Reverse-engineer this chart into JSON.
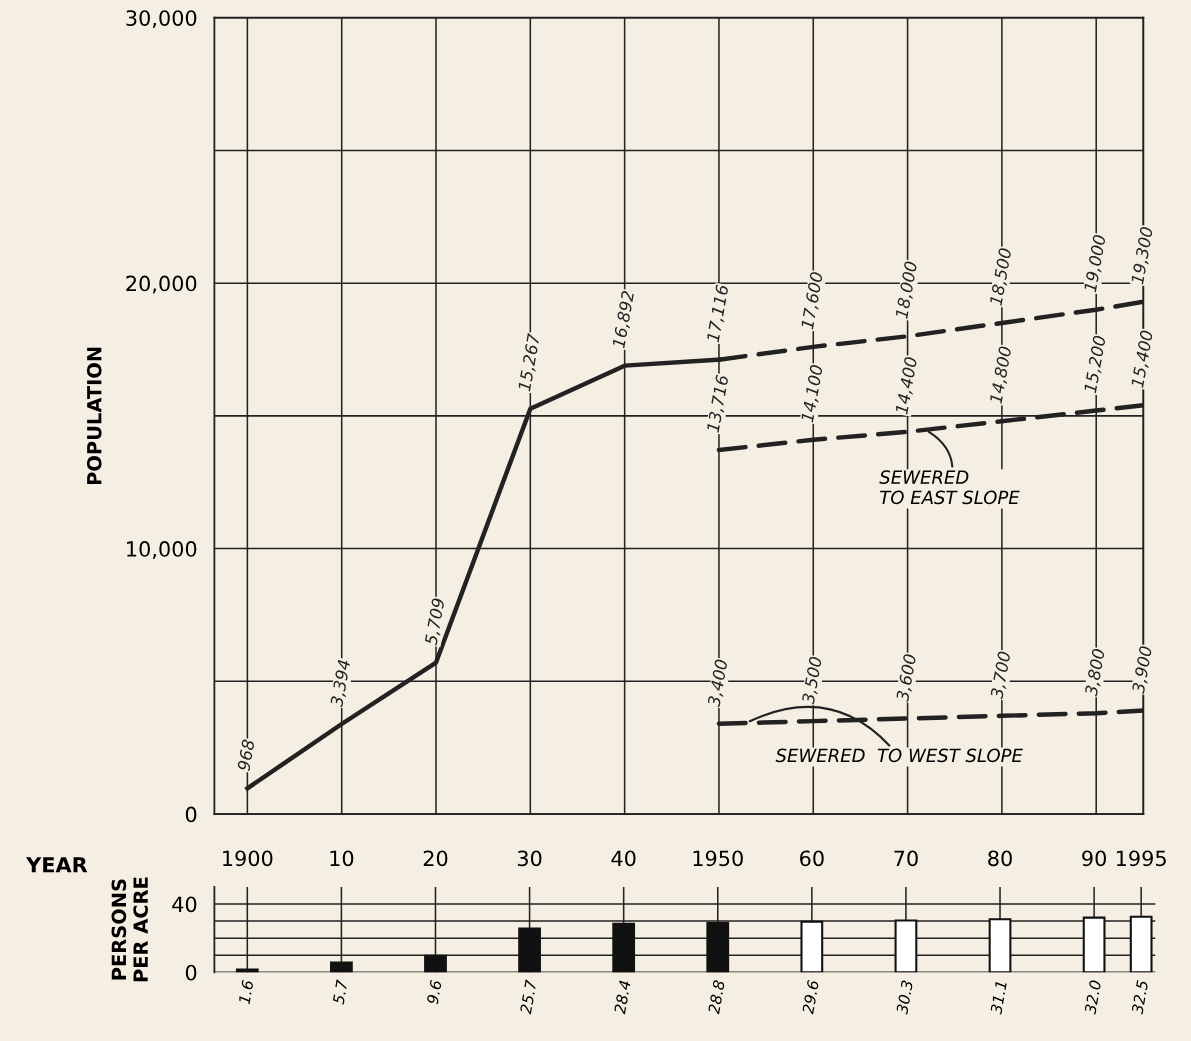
{
  "chart_data": [
    {
      "type": "line",
      "ylabel": "POPULATION",
      "xlim": [
        1896.5,
        1995
      ],
      "xticks": [
        1900,
        1910,
        1920,
        1930,
        1940,
        1950,
        1960,
        1970,
        1980,
        1990,
        1995
      ],
      "tick_labels": "y",
      "ylim": [
        0,
        30000
      ],
      "yticks": [
        0,
        {
          "value": 5000,
          "label": null
        },
        {
          "value": 10000,
          "label": "10,000"
        },
        {
          "value": 15000,
          "label": null
        },
        {
          "value": 20000,
          "label": "20,000"
        },
        {
          "value": 25000,
          "label": null
        },
        {
          "value": 30000,
          "label": "30,000"
        }
      ],
      "grid": true,
      "legend": false,
      "series": [
        {
          "color": "#222222",
          "line_style": "solid",
          "x": [
            1900,
            1910,
            1920,
            1930,
            1940,
            1950
          ],
          "values": [
            968,
            3394,
            5709,
            15267,
            16892,
            17116
          ],
          "value_labels": [
            "968",
            "3,394",
            "5,709",
            "15,267",
            "16,892",
            "17,116"
          ]
        },
        {
          "color": "#222222",
          "line_style": "dashed",
          "x": [
            1950,
            1960,
            1970,
            1980,
            1990,
            1995
          ],
          "values": [
            17116,
            17600,
            18000,
            18500,
            19000,
            19300
          ],
          "value_labels": [
            null,
            "17,600",
            "18,000",
            "18,500",
            "19,000",
            "19,300"
          ]
        },
        {
          "color": "#222222",
          "line_style": "dashed",
          "x": [
            1950,
            1960,
            1970,
            1980,
            1990,
            1995
          ],
          "values": [
            13716,
            14100,
            14400,
            14800,
            15200,
            15400
          ],
          "value_labels": [
            "13,716",
            "14,100",
            "14,400",
            "14,800",
            "15,200",
            "15,400"
          ]
        },
        {
          "color": "#222222",
          "line_style": "dashed",
          "x": [
            1950,
            1960,
            1970,
            1980,
            1990,
            1995
          ],
          "values": [
            3400,
            3500,
            3600,
            3700,
            3800,
            3900
          ],
          "value_labels": [
            "3,400",
            "3,500",
            "3,600",
            "3,700",
            "3,800",
            "3,900"
          ]
        }
      ],
      "annotations": [
        {
          "text": "SEWERED\nTO EAST SLOPE",
          "x": 1972,
          "y": 14450
        },
        {
          "text": "SEWERED  TO WEST SLOPE",
          "x": 1953,
          "y": 3450
        }
      ]
    },
    {
      "type": "bar",
      "ylabel": "PERSONS\nPER ACRE",
      "xlabel": "YEAR",
      "x": [
        1900,
        1910,
        1920,
        1930,
        1940,
        1950,
        1960,
        1970,
        1980,
        1990,
        1995
      ],
      "xlim": [
        1896.5,
        1996.5
      ],
      "xticks": [
        {
          "value": 1900,
          "label": "1900"
        },
        {
          "value": 1910,
          "label": "10"
        },
        {
          "value": 1920,
          "label": "20"
        },
        {
          "value": 1930,
          "label": "30"
        },
        {
          "value": 1940,
          "label": "40"
        },
        {
          "value": 1950,
          "label": "1950"
        },
        {
          "value": 1960,
          "label": "60"
        },
        {
          "value": 1970,
          "label": "70"
        },
        {
          "value": 1980,
          "label": "80"
        },
        {
          "value": 1990,
          "label": "90"
        },
        {
          "value": 1995,
          "label": "1995"
        }
      ],
      "ylim": [
        0,
        50
      ],
      "yticks": [
        0,
        {
          "value": 10,
          "label": null
        },
        {
          "value": 20,
          "label": null
        },
        {
          "value": 30,
          "label": null
        },
        40
      ],
      "grid": true,
      "values": [
        1.6,
        5.7,
        9.6,
        25.7,
        28.4,
        28.8,
        29.6,
        30.3,
        31.1,
        32.0,
        32.5
      ],
      "colors": [
        "#111111",
        "#111111",
        "#111111",
        "#111111",
        "#111111",
        "#111111",
        "#ffffff",
        "#ffffff",
        "#ffffff",
        "#ffffff",
        "#ffffff"
      ],
      "value_labels": [
        "1.6",
        "5.7",
        "9.6",
        "25.7",
        "28.4",
        "28.8",
        "29.6",
        "30.3",
        "31.1",
        "32.0",
        "32.5"
      ]
    }
  ]
}
